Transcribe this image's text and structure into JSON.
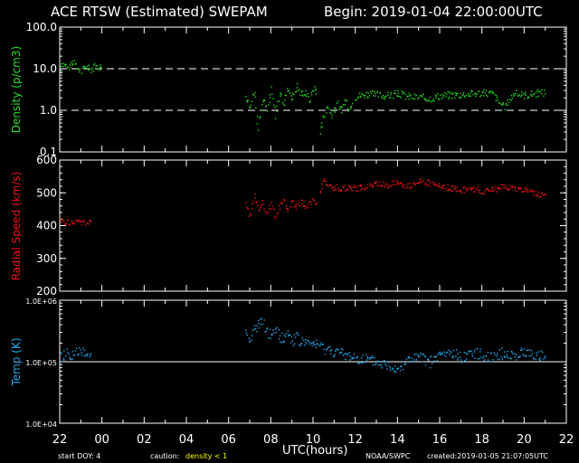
{
  "header": {
    "title": "ACE RTSW (Estimated) SWEPAM",
    "begin": "Begin: 2019-01-04 22:00:00UTC"
  },
  "footer": {
    "start_doy": "start DOY:   4",
    "caution_label": "caution:",
    "caution_value": "density < 1",
    "xaxis_label": "UTC(hours)",
    "agency": "NOAA/SWPC",
    "created": "created:2019-01-05 21:07:05UTC"
  },
  "colors": {
    "density": "#22dd22",
    "speed": "#ee1111",
    "temp": "#22aaee",
    "caution": "#ffff00",
    "axis": "#ffffff",
    "background": "#000000"
  },
  "chart_data": [
    {
      "type": "scatter",
      "ylabel": "Density (p/cm3)",
      "yscale": "log",
      "ylim": [
        0.1,
        100
      ],
      "yticks": [
        "0.1",
        "1.0",
        "10.0",
        "100.0"
      ],
      "reference_lines": [
        1.0,
        10.0
      ],
      "xlim": [
        22,
        46
      ],
      "xticks": [
        "22",
        "00",
        "02",
        "04",
        "06",
        "08",
        "10",
        "12",
        "14",
        "16",
        "18",
        "20",
        "22"
      ],
      "segments": [
        {
          "x": [
            22.0,
            22.2,
            22.4,
            22.6,
            22.8,
            23.0,
            23.2,
            23.4,
            23.6,
            23.8,
            24.0
          ],
          "y": [
            10.0,
            14.0,
            12.0,
            15.0,
            11.0,
            9.0,
            12.0,
            10.0,
            11.0,
            12.0,
            11.0
          ]
        },
        {
          "x": [
            30.8,
            31.0,
            31.2,
            31.4,
            31.6,
            31.8,
            32.0,
            32.2,
            32.4,
            32.6,
            32.8,
            33.0,
            33.2,
            33.4,
            33.6,
            33.8,
            34.0,
            34.2
          ],
          "y": [
            2.5,
            1.2,
            3.0,
            0.4,
            2.0,
            1.0,
            3.2,
            0.8,
            2.5,
            1.5,
            3.6,
            2.0,
            4.0,
            2.5,
            3.0,
            1.8,
            3.5,
            3.0
          ]
        },
        {
          "x": [
            34.3,
            34.5,
            34.7,
            34.9,
            35.1,
            35.3,
            35.5,
            35.7,
            35.9
          ],
          "y": [
            0.3,
            0.8,
            1.3,
            0.7,
            1.6,
            0.9,
            1.8,
            1.1,
            2.0
          ]
        },
        {
          "x": [
            36.0,
            36.5,
            37.0,
            37.5,
            38.0,
            38.5,
            39.0,
            39.5,
            40.0,
            40.5,
            41.0,
            41.5,
            42.0,
            42.5,
            43.0,
            43.5,
            44.0,
            44.5,
            45.0
          ],
          "y": [
            2.2,
            2.5,
            2.4,
            2.3,
            2.6,
            2.2,
            2.1,
            2.0,
            2.3,
            2.4,
            2.5,
            2.6,
            2.7,
            2.6,
            1.2,
            2.6,
            2.4,
            2.6,
            2.8
          ]
        }
      ]
    },
    {
      "type": "scatter",
      "ylabel": "Radial Speed (km/s)",
      "ylim": [
        200,
        600
      ],
      "yticks": [
        "200",
        "300",
        "400",
        "500",
        "600"
      ],
      "xlim": [
        22,
        46
      ],
      "segments": [
        {
          "x": [
            22.0,
            22.3,
            22.6,
            22.9,
            23.2,
            23.5
          ],
          "y": [
            415,
            412,
            410,
            414,
            411,
            410
          ]
        },
        {
          "x": [
            30.8,
            31.0,
            31.2,
            31.4,
            31.6,
            31.8,
            32.0,
            32.2,
            32.4,
            32.6,
            32.8,
            33.0,
            33.2,
            33.4,
            33.6,
            33.8,
            34.0,
            34.2
          ],
          "y": [
            470,
            430,
            490,
            455,
            470,
            440,
            465,
            430,
            460,
            480,
            450,
            470,
            460,
            475,
            455,
            470,
            480,
            470
          ]
        },
        {
          "x": [
            34.3,
            34.5,
            34.7,
            34.9,
            35.1,
            35.3,
            35.6,
            36.0,
            36.5,
            37.0,
            37.5,
            38.0,
            38.5,
            39.0,
            39.5,
            40.0,
            40.5,
            41.0,
            41.5,
            42.0,
            42.5,
            43.0,
            43.5,
            44.0,
            44.5,
            45.0
          ],
          "y": [
            500,
            540,
            525,
            515,
            520,
            510,
            520,
            515,
            520,
            530,
            525,
            535,
            520,
            540,
            530,
            520,
            515,
            510,
            515,
            505,
            510,
            520,
            515,
            510,
            500,
            490
          ]
        }
      ]
    },
    {
      "type": "scatter",
      "ylabel": "Temp (K)",
      "yscale": "log",
      "ylim": [
        10000,
        1000000
      ],
      "yticks": [
        "1.0E+04",
        "1.0E+05",
        "1.0E+06"
      ],
      "reference_lines": [
        100000
      ],
      "xlim": [
        22,
        46
      ],
      "segments": [
        {
          "x": [
            22.0,
            22.3,
            22.6,
            22.9,
            23.2,
            23.5
          ],
          "y": [
            120000,
            140000,
            130000,
            150000,
            135000,
            140000
          ]
        },
        {
          "x": [
            30.8,
            31.0,
            31.2,
            31.4,
            31.6,
            31.8,
            32.0,
            32.2,
            32.4,
            32.6,
            32.8,
            33.0,
            33.2,
            33.4,
            33.6,
            33.8,
            34.0,
            34.2,
            34.5,
            35.0,
            35.5,
            36.0,
            36.5,
            37.0,
            37.5,
            38.0,
            38.5,
            39.0,
            39.5,
            40.0,
            40.5,
            41.0,
            41.5,
            42.0,
            42.5,
            43.0,
            43.5,
            44.0,
            44.5,
            45.0
          ],
          "y": [
            300000,
            250000,
            350000,
            400000,
            450000,
            300000,
            280000,
            350000,
            260000,
            240000,
            300000,
            220000,
            260000,
            200000,
            230000,
            180000,
            210000,
            190000,
            170000,
            150000,
            130000,
            120000,
            110000,
            100000,
            90000,
            80000,
            110000,
            120000,
            100000,
            130000,
            140000,
            120000,
            150000,
            130000,
            125000,
            140000,
            130000,
            145000,
            135000,
            120000
          ]
        }
      ]
    }
  ]
}
